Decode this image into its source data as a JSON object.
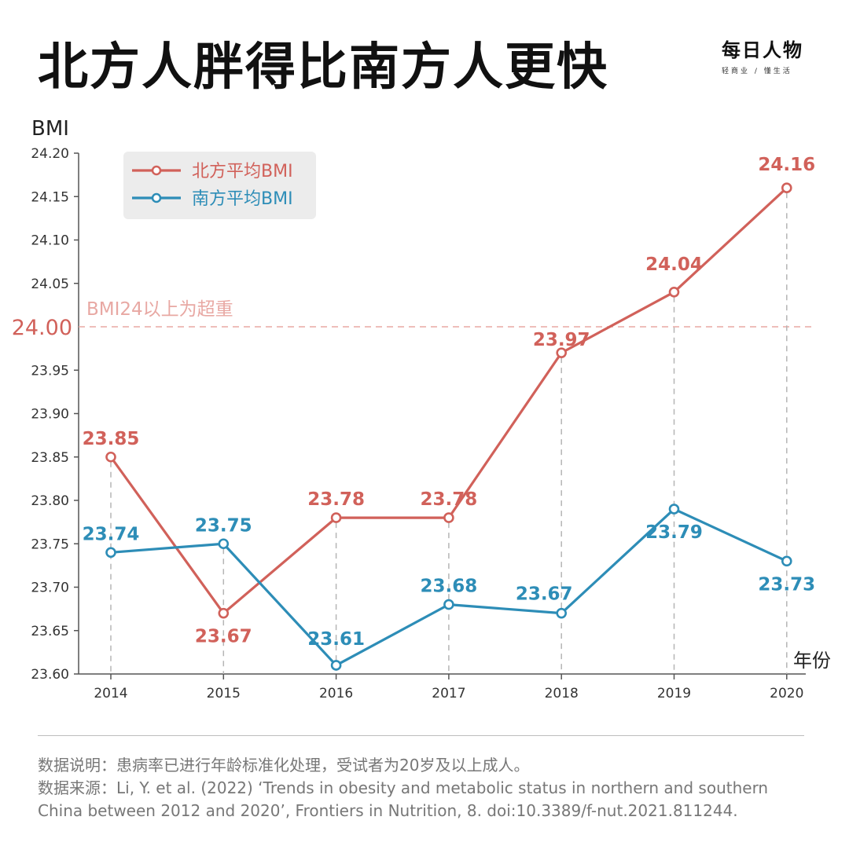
{
  "header": {
    "title": "北方人胖得比南方人更快",
    "brand_name": "每日人物",
    "brand_slogan": "轻商业 / 懂生活"
  },
  "chart_data": {
    "type": "line",
    "title": "北方人胖得比南方人更快",
    "ylabel": "BMI",
    "xlabel": "年份",
    "ylim": [
      23.6,
      24.2
    ],
    "yticks": [
      "24.20",
      "24.15",
      "24.10",
      "24.05",
      "24.00",
      "23.95",
      "23.90",
      "23.85",
      "23.80",
      "23.75",
      "23.70",
      "23.65",
      "23.60"
    ],
    "categories": [
      "2014",
      "2015",
      "2016",
      "2017",
      "2018",
      "2019",
      "2020"
    ],
    "series": [
      {
        "name": "北方平均BMI",
        "color": "#d1615a",
        "values": [
          23.85,
          23.67,
          23.78,
          23.78,
          23.97,
          24.04,
          24.16
        ],
        "labels": [
          "23.85",
          "23.67",
          "23.78",
          "23.78",
          "23.97",
          "24.04",
          "24.16"
        ]
      },
      {
        "name": "南方平均BMI",
        "color": "#2d8db7",
        "values": [
          23.74,
          23.75,
          23.61,
          23.68,
          23.67,
          23.79,
          23.73
        ],
        "labels": [
          "23.74",
          "23.75",
          "23.61",
          "23.68",
          "23.67",
          "23.79",
          "23.73"
        ]
      }
    ],
    "reference_line": {
      "value": 24.0,
      "value_label": "24.00",
      "label": "BMI24以上为超重",
      "color": "#e8a8a3"
    },
    "legend_placement": "top-left",
    "grid": false
  },
  "notes": {
    "line1": "数据说明：患病率已进行年龄标准化处理，受试者为20岁及以上成人。",
    "line2": "数据来源：Li, Y. et al. (2022) ‘Trends in obesity and metabolic status in northern and southern China between 2012 and 2020’, Frontiers in Nutrition, 8. doi:10.3389/f-nut.2021.811244."
  }
}
